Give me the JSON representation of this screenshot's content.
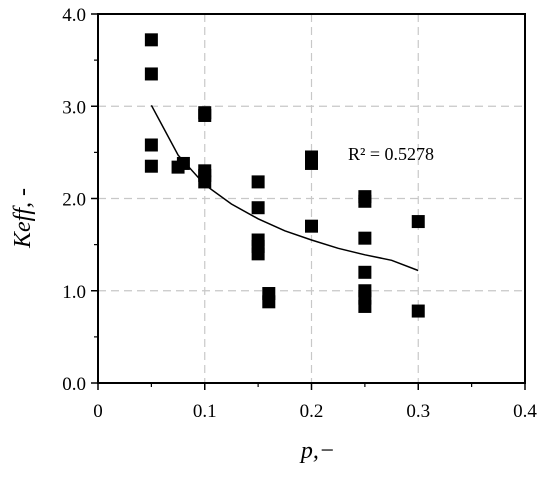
{
  "chart_data": {
    "type": "scatter",
    "xlabel": "p,−",
    "ylabel": "Keff, -",
    "xlim": [
      0,
      0.4
    ],
    "ylim": [
      0,
      4.0
    ],
    "x_ticks": [
      "0",
      "0.1",
      "0.2",
      "0.3",
      "0.4"
    ],
    "y_ticks": [
      "0.0",
      "1.0",
      "2.0",
      "3.0",
      "4.0"
    ],
    "grid": true,
    "legend": "none",
    "annotation": "R² = 0.5278",
    "colors": {
      "points": "#000000",
      "grid": "#c8c8c8",
      "trend": "#000000"
    },
    "series": [
      {
        "marker": "square",
        "points": [
          [
            0.05,
            3.72
          ],
          [
            0.05,
            3.35
          ],
          [
            0.05,
            2.58
          ],
          [
            0.05,
            2.35
          ],
          [
            0.075,
            2.34
          ],
          [
            0.08,
            2.38
          ],
          [
            0.1,
            2.93
          ],
          [
            0.1,
            2.9
          ],
          [
            0.1,
            2.3
          ],
          [
            0.1,
            2.25
          ],
          [
            0.1,
            2.18
          ],
          [
            0.15,
            2.18
          ],
          [
            0.15,
            1.9
          ],
          [
            0.15,
            1.55
          ],
          [
            0.15,
            1.48
          ],
          [
            0.15,
            1.4
          ],
          [
            0.16,
            0.97
          ],
          [
            0.16,
            0.88
          ],
          [
            0.2,
            2.45
          ],
          [
            0.2,
            2.38
          ],
          [
            0.2,
            1.7
          ],
          [
            0.25,
            2.02
          ],
          [
            0.25,
            1.97
          ],
          [
            0.25,
            1.57
          ],
          [
            0.25,
            1.2
          ],
          [
            0.25,
            1.0
          ],
          [
            0.25,
            0.92
          ],
          [
            0.25,
            0.83
          ],
          [
            0.3,
            1.75
          ],
          [
            0.3,
            0.78
          ]
        ]
      }
    ],
    "trendline": {
      "type": "power",
      "x": [
        0.05,
        0.075,
        0.1,
        0.125,
        0.15,
        0.175,
        0.2,
        0.225,
        0.25,
        0.275,
        0.3
      ],
      "y": [
        3.01,
        2.47,
        2.15,
        1.94,
        1.78,
        1.65,
        1.55,
        1.46,
        1.39,
        1.33,
        1.22
      ]
    }
  }
}
